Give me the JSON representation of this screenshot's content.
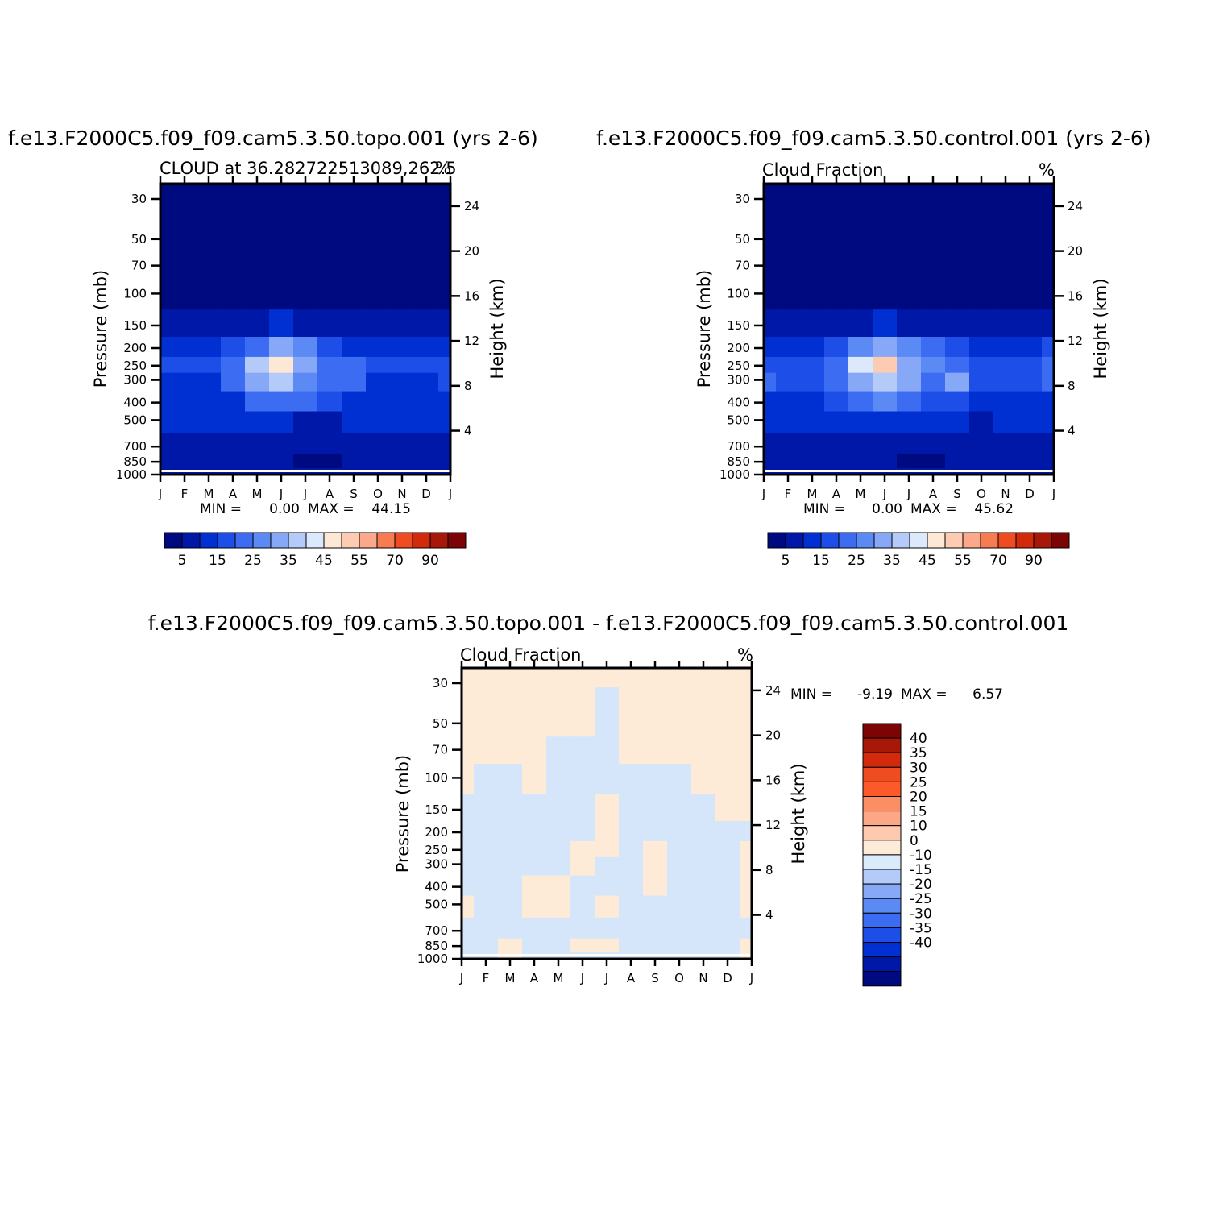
{
  "palette": {
    "full": [
      "#000a80",
      "#0018a8",
      "#0030d2",
      "#1e4ee8",
      "#3c6cf2",
      "#5c8af4",
      "#86a8f6",
      "#b4caf8",
      "#dce8fc",
      "#fde8d6",
      "#fdcab2",
      "#fca88a",
      "#f87c52",
      "#f04c22",
      "#d42a0c",
      "#a81808",
      "#7c0404"
    ],
    "diff": [
      "#7c0404",
      "#a81808",
      "#d42a0c",
      "#f04c22",
      "#fc5a2a",
      "#fc8e64",
      "#fca888",
      "#fdcab0",
      "#fdebd8",
      "#dcebfc",
      "#b4caf8",
      "#86a8f6",
      "#5c8af4",
      "#3c6cf2",
      "#1e4ee8",
      "#0030d2",
      "#0018a8",
      "#000a80"
    ]
  },
  "panels": [
    {
      "title": "f.e13.F2000C5.f09_f09.cam5.3.50.topo.001  (yrs 2-6)",
      "subtitle_left": "CLOUD at 36.282722513089,262.5",
      "subtitle_right": "%",
      "stats": {
        "min_label": "MIN =",
        "min": "0.00",
        "max_label": "MAX =",
        "max": "44.15"
      }
    },
    {
      "title": "f.e13.F2000C5.f09_f09.cam5.3.50.control.001  (yrs 2-6)",
      "subtitle_left": "Cloud Fraction",
      "subtitle_right": "%",
      "stats": {
        "min_label": "MIN =",
        "min": "0.00",
        "max_label": "MAX =",
        "max": "45.62"
      }
    },
    {
      "title": "f.e13.F2000C5.f09_f09.cam5.3.50.topo.001  -  f.e13.F2000C5.f09_f09.cam5.3.50.control.001",
      "subtitle_left": "Cloud Fraction",
      "subtitle_right": "%",
      "stats": {
        "min_label": "MIN =",
        "min": "-9.19",
        "max_label": "MAX =",
        "max": "6.57"
      }
    }
  ],
  "chart_data": [
    {
      "type": "heatmap",
      "title": "f.e13.F2000C5.f09_f09.cam5.3.50.topo.001  (yrs 2-6)",
      "subtitle": "CLOUD at 36.282722513089,262.5",
      "units": "%",
      "xlabel": "",
      "ylabel": "Pressure (mb)",
      "ylabel_right": "Height (km)",
      "x_ticks": [
        "J",
        "F",
        "M",
        "A",
        "M",
        "J",
        "J",
        "A",
        "S",
        "O",
        "N",
        "D",
        "J"
      ],
      "y_ticks": [
        30,
        50,
        70,
        100,
        150,
        200,
        250,
        300,
        400,
        500,
        700,
        850,
        1000
      ],
      "y_right_ticks": [
        4,
        8,
        12,
        16,
        20,
        24
      ],
      "y_scale": "log",
      "ylim": [
        1000,
        20
      ],
      "colorbar_labels": [
        "5",
        "15",
        "25",
        "35",
        "45",
        "55",
        "70",
        "90"
      ],
      "min": 0.0,
      "max": 44.15,
      "x": [
        "J",
        "F",
        "M",
        "A",
        "M",
        "J",
        "J",
        "A",
        "S",
        "O",
        "N",
        "D",
        "J"
      ],
      "levels_mb": [
        20,
        100,
        150,
        200,
        250,
        300,
        400,
        500,
        700,
        850,
        1000
      ],
      "values": [
        [
          0,
          0,
          0,
          0,
          0,
          0,
          0,
          0,
          0,
          0,
          0,
          0,
          0
        ],
        [
          1,
          1,
          1,
          1,
          1,
          2,
          1,
          1,
          1,
          1,
          1,
          1,
          1
        ],
        [
          3,
          3,
          3,
          4,
          6,
          8,
          6,
          4,
          3,
          3,
          3,
          3,
          3
        ],
        [
          10,
          9,
          10,
          14,
          22,
          30,
          24,
          16,
          12,
          10,
          10,
          10,
          12
        ],
        [
          14,
          13,
          14,
          20,
          36,
          44,
          30,
          22,
          20,
          14,
          13,
          13,
          16
        ],
        [
          12,
          12,
          12,
          18,
          30,
          35,
          26,
          20,
          22,
          12,
          12,
          12,
          14
        ],
        [
          10,
          10,
          10,
          12,
          18,
          22,
          18,
          14,
          12,
          10,
          10,
          10,
          10
        ],
        [
          8,
          8,
          8,
          8,
          10,
          10,
          7,
          7,
          8,
          8,
          8,
          8,
          8
        ],
        [
          5,
          5,
          5,
          6,
          6,
          5,
          3,
          3,
          4,
          5,
          5,
          5,
          5
        ],
        [
          5,
          6,
          7,
          6,
          5,
          4,
          2,
          2,
          3,
          4,
          4,
          4,
          4
        ],
        [
          5,
          5,
          5,
          5,
          5,
          3,
          3,
          3,
          3,
          4,
          4,
          4,
          4
        ]
      ]
    },
    {
      "type": "heatmap",
      "title": "f.e13.F2000C5.f09_f09.cam5.3.50.control.001  (yrs 2-6)",
      "subtitle": "Cloud Fraction",
      "units": "%",
      "xlabel": "",
      "ylabel": "Pressure (mb)",
      "ylabel_right": "Height (km)",
      "x_ticks": [
        "J",
        "F",
        "M",
        "A",
        "M",
        "J",
        "J",
        "A",
        "S",
        "O",
        "N",
        "D",
        "J"
      ],
      "y_ticks": [
        30,
        50,
        70,
        100,
        150,
        200,
        250,
        300,
        400,
        500,
        700,
        850,
        1000
      ],
      "y_right_ticks": [
        4,
        8,
        12,
        16,
        20,
        24
      ],
      "y_scale": "log",
      "ylim": [
        1000,
        20
      ],
      "colorbar_labels": [
        "5",
        "15",
        "25",
        "35",
        "45",
        "55",
        "70",
        "90"
      ],
      "min": 0.0,
      "max": 45.62,
      "x": [
        "J",
        "F",
        "M",
        "A",
        "M",
        "J",
        "J",
        "A",
        "S",
        "O",
        "N",
        "D",
        "J"
      ],
      "levels_mb": [
        20,
        100,
        150,
        200,
        250,
        300,
        400,
        500,
        700,
        850,
        1000
      ],
      "values": [
        [
          0,
          0,
          0,
          0,
          0,
          0,
          0,
          0,
          0,
          0,
          0,
          0,
          0
        ],
        [
          1,
          1,
          1,
          1,
          1,
          2,
          1,
          1,
          1,
          1,
          1,
          1,
          1
        ],
        [
          3,
          3,
          3,
          4,
          6,
          9,
          6,
          4,
          3,
          3,
          3,
          3,
          3
        ],
        [
          12,
          10,
          11,
          16,
          26,
          32,
          24,
          18,
          14,
          11,
          11,
          11,
          13
        ],
        [
          16,
          14,
          15,
          22,
          38,
          45,
          32,
          24,
          22,
          16,
          15,
          15,
          18
        ],
        [
          22,
          14,
          14,
          20,
          32,
          36,
          28,
          22,
          28,
          14,
          14,
          14,
          20
        ],
        [
          12,
          11,
          11,
          14,
          20,
          24,
          20,
          16,
          14,
          12,
          12,
          12,
          12
        ],
        [
          8,
          8,
          8,
          8,
          11,
          12,
          9,
          9,
          8,
          7,
          8,
          8,
          8
        ],
        [
          6,
          6,
          6,
          6,
          5,
          5,
          3,
          3,
          4,
          5,
          5,
          5,
          6
        ],
        [
          6,
          6,
          6,
          6,
          5,
          4,
          2,
          2,
          4,
          5,
          6,
          6,
          6
        ],
        [
          5,
          5,
          5,
          5,
          5,
          3,
          3,
          3,
          4,
          4,
          4,
          4,
          5
        ]
      ]
    },
    {
      "type": "heatmap",
      "title": "f.e13.F2000C5.f09_f09.cam5.3.50.topo.001  -  f.e13.F2000C5.f09_f09.cam5.3.50.control.001",
      "subtitle": "Cloud Fraction",
      "units": "%",
      "xlabel": "",
      "ylabel": "Pressure (mb)",
      "ylabel_right": "Height (km)",
      "x_ticks": [
        "J",
        "F",
        "M",
        "A",
        "M",
        "J",
        "J",
        "A",
        "S",
        "O",
        "N",
        "D",
        "J"
      ],
      "y_ticks": [
        30,
        50,
        70,
        100,
        150,
        200,
        250,
        300,
        400,
        500,
        700,
        850,
        1000
      ],
      "y_right_ticks": [
        4,
        8,
        12,
        16,
        20,
        24
      ],
      "y_scale": "log",
      "ylim": [
        1000,
        20
      ],
      "colorbar_labels": [
        "40",
        "35",
        "30",
        "25",
        "20",
        "15",
        "10",
        "0",
        "-10",
        "-15",
        "-20",
        "-25",
        "-30",
        "-35",
        "-40"
      ],
      "min": -9.19,
      "max": 6.57,
      "x": [
        "J",
        "F",
        "M",
        "A",
        "M",
        "J",
        "J",
        "A",
        "S",
        "O",
        "N",
        "D",
        "J"
      ],
      "levels_mb": [
        20,
        50,
        70,
        100,
        150,
        200,
        250,
        300,
        400,
        500,
        700,
        850,
        1000
      ],
      "values": [
        [
          1,
          1,
          1,
          1,
          1,
          1,
          1,
          1,
          1,
          1,
          1,
          1,
          1
        ],
        [
          1,
          1,
          1,
          1,
          1,
          1,
          -1,
          1,
          1,
          1,
          1,
          1,
          1
        ],
        [
          1,
          1,
          1,
          1,
          -1,
          -1,
          -1,
          1,
          1,
          1,
          1,
          1,
          1
        ],
        [
          1,
          -1,
          -1,
          1,
          -1,
          -1,
          -1,
          -1,
          -1,
          -1,
          1,
          1,
          1
        ],
        [
          -1,
          -1,
          -1,
          -1,
          -1,
          -1,
          1,
          -1,
          -1,
          -1,
          -1,
          1,
          1
        ],
        [
          -1,
          -1,
          -1,
          -1,
          -1,
          -1,
          1,
          -1,
          -1,
          -1,
          -1,
          -1,
          -1
        ],
        [
          -1,
          -1,
          -1,
          -1,
          -1,
          1,
          1,
          -1,
          1,
          -1,
          -1,
          -1,
          1
        ],
        [
          -1,
          -1,
          -1,
          -1,
          -1,
          1,
          -1,
          -1,
          1,
          -1,
          -1,
          -1,
          1
        ],
        [
          -1,
          -1,
          -1,
          1,
          1,
          -1,
          -1,
          -1,
          1,
          -1,
          -1,
          -1,
          1
        ],
        [
          1,
          -1,
          -1,
          1,
          1,
          -1,
          1,
          -1,
          -1,
          -1,
          -1,
          -1,
          1
        ],
        [
          -1,
          -1,
          -1,
          -1,
          -1,
          -1,
          -1,
          -1,
          -1,
          -1,
          -1,
          -1,
          -1
        ],
        [
          -1,
          -1,
          1,
          -1,
          -1,
          1,
          1,
          -1,
          -1,
          -1,
          -1,
          -1,
          1
        ],
        [
          -1,
          -1,
          1,
          -1,
          -1,
          -1,
          -1,
          -1,
          -1,
          -1,
          -1,
          -1,
          1
        ]
      ]
    }
  ]
}
